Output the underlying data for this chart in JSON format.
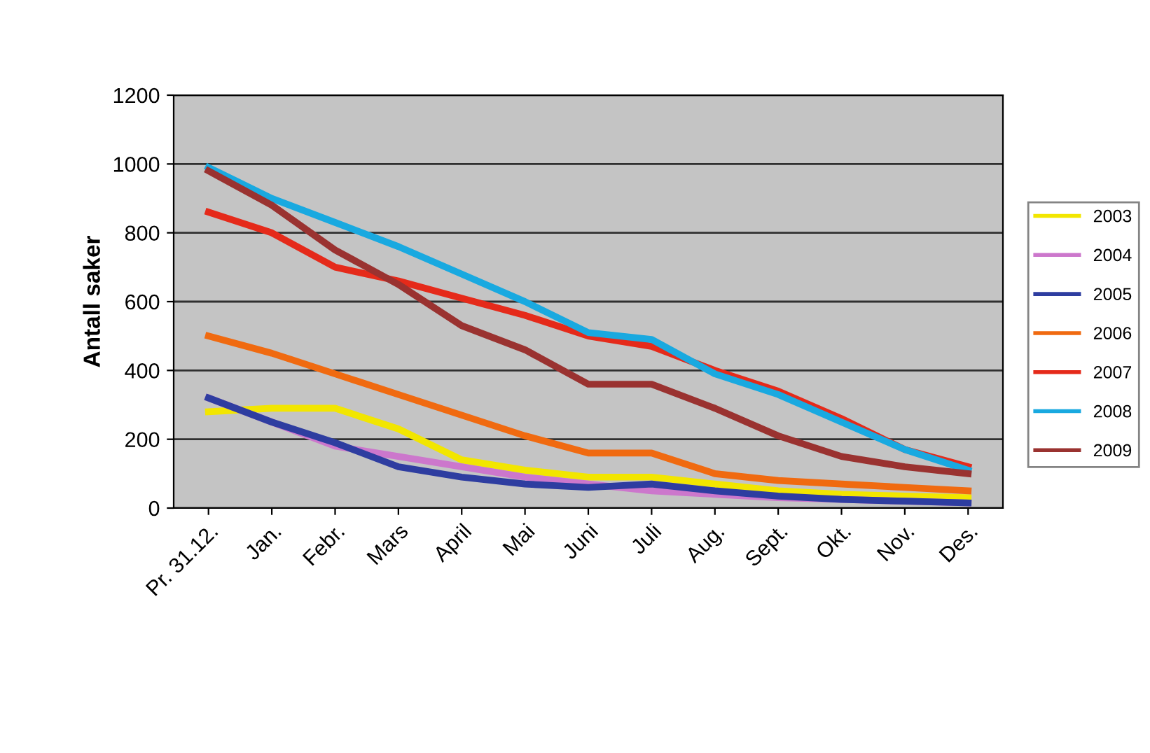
{
  "chart_data": {
    "type": "line",
    "ylabel": "Antall saker",
    "categories": [
      "Pr. 31.12.",
      "Jan.",
      "Febr.",
      "Mars",
      "April",
      "Mai",
      "Juni",
      "Juli",
      "Aug.",
      "Sept.",
      "Okt.",
      "Nov.",
      "Des."
    ],
    "series": [
      {
        "name": "2003",
        "color": "#f2e600",
        "values": [
          280,
          290,
          290,
          230,
          140,
          110,
          90,
          90,
          70,
          50,
          40,
          35,
          30
        ]
      },
      {
        "name": "2004",
        "color": "#cc77cc",
        "values": [
          320,
          250,
          180,
          150,
          120,
          90,
          70,
          50,
          40,
          30,
          25,
          20,
          15
        ]
      },
      {
        "name": "2005",
        "color": "#2e3da0",
        "values": [
          320,
          250,
          190,
          120,
          90,
          70,
          60,
          70,
          50,
          35,
          25,
          20,
          15
        ]
      },
      {
        "name": "2006",
        "color": "#f06a10",
        "values": [
          500,
          450,
          390,
          330,
          270,
          210,
          160,
          160,
          100,
          80,
          70,
          60,
          50
        ]
      },
      {
        "name": "2007",
        "color": "#e52a1a",
        "values": [
          860,
          800,
          700,
          660,
          610,
          560,
          500,
          470,
          400,
          340,
          260,
          170,
          120
        ]
      },
      {
        "name": "2008",
        "color": "#19a9e0",
        "values": [
          990,
          900,
          830,
          760,
          680,
          600,
          510,
          490,
          390,
          330,
          250,
          170,
          110
        ]
      },
      {
        "name": "2009",
        "color": "#9a3230",
        "values": [
          980,
          880,
          750,
          650,
          530,
          460,
          360,
          360,
          290,
          210,
          150,
          120,
          100
        ]
      }
    ],
    "ylim": [
      0,
      1200
    ],
    "yticks": [
      0,
      200,
      400,
      600,
      800,
      1000,
      1200
    ],
    "grid": "y",
    "legend": "right",
    "marker": "none",
    "line_style": "solid"
  }
}
